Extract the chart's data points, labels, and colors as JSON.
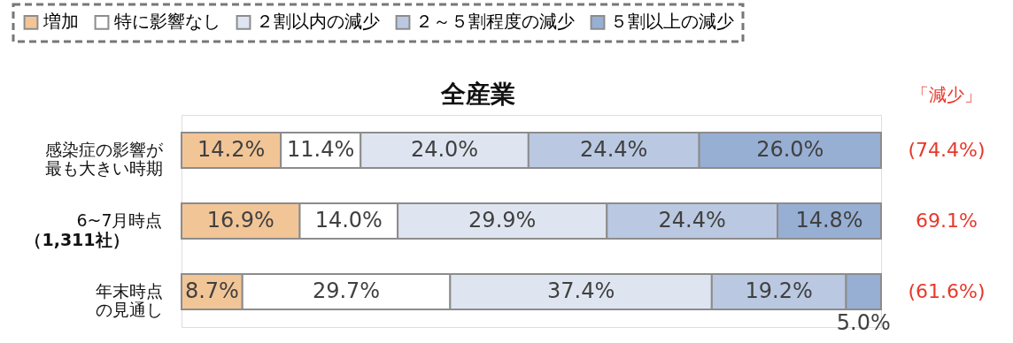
{
  "chart_data": {
    "type": "bar",
    "orientation": "horizontal",
    "stacked": true,
    "title": "全産業",
    "categories": [
      "感染症の影響が最も大きい時期",
      "6~7月時点",
      "年末時点の見通し"
    ],
    "series": [
      {
        "name": "増加",
        "color": "#f2c597",
        "values": [
          14.2,
          16.9,
          8.7
        ],
        "value_labels": [
          "14.2%",
          "16.9%",
          "8.7%"
        ]
      },
      {
        "name": "特に影響なし",
        "color": "#ffffff",
        "values": [
          11.4,
          14.0,
          29.7
        ],
        "value_labels": [
          "11.4%",
          "14.0%",
          "29.7%"
        ]
      },
      {
        "name": "２割以内の減少",
        "color": "#dfe5f0",
        "values": [
          24.0,
          29.9,
          37.4
        ],
        "value_labels": [
          "24.0%",
          "29.9%",
          "37.4%"
        ]
      },
      {
        "name": "２～５割程度の減少",
        "color": "#bac9e1",
        "values": [
          24.4,
          24.4,
          19.2
        ],
        "value_labels": [
          "24.4%",
          "24.4%",
          "19.2%"
        ]
      },
      {
        "name": "５割以上の減少",
        "color": "#98afd4",
        "values": [
          26.0,
          14.8,
          5.0
        ],
        "value_labels": [
          "26.0%",
          "14.8%",
          "5.0%"
        ]
      }
    ],
    "tick_labels": "y",
    "legend": "top",
    "annotations": [
      "（1,311社）",
      "「減少」",
      "(74.4%)",
      "69.1%",
      "(61.6%)"
    ]
  }
}
